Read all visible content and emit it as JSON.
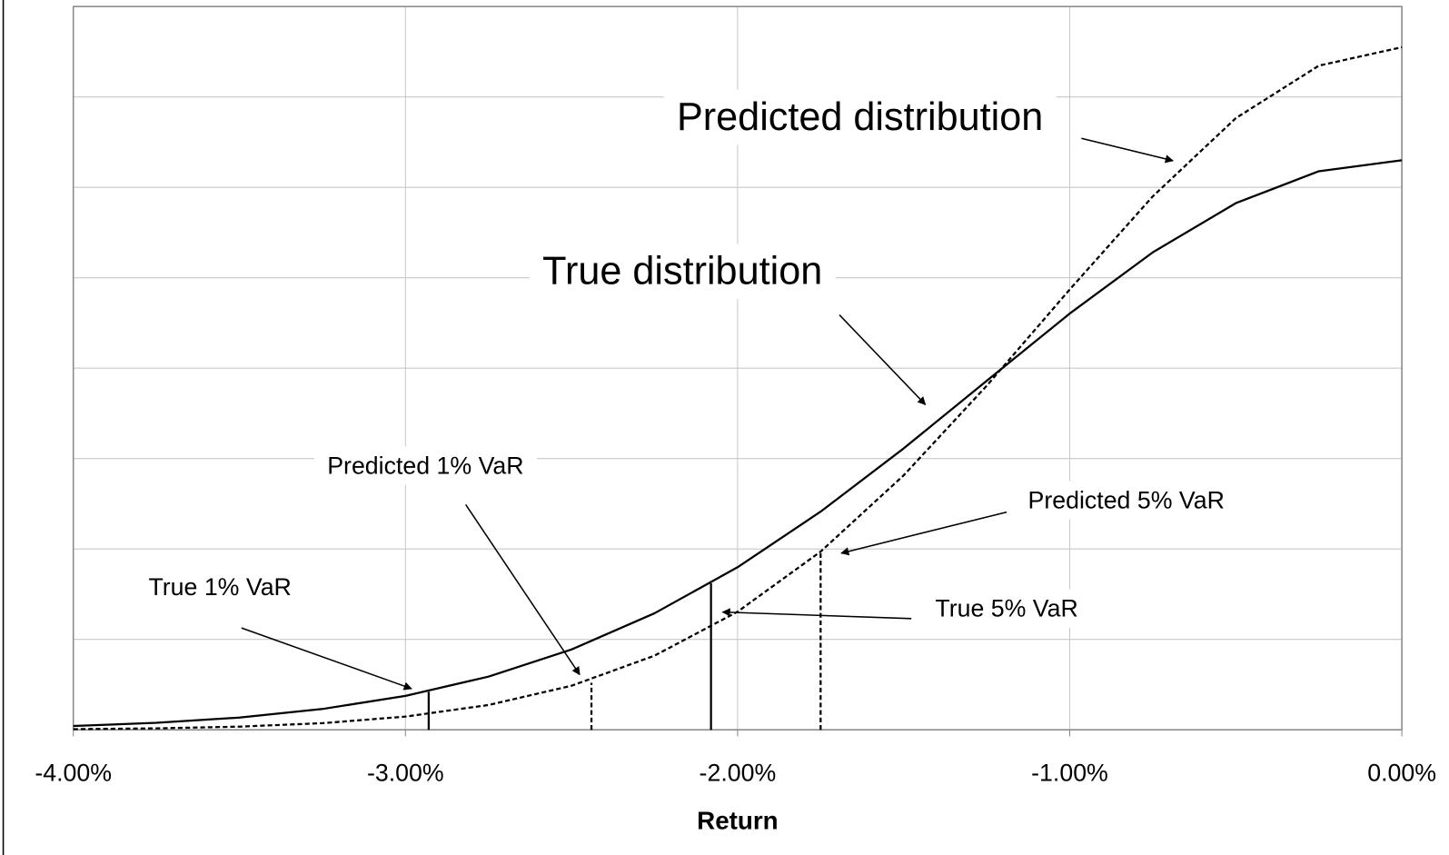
{
  "chart_data": {
    "type": "line",
    "xlabel": "Return",
    "x": [
      -4,
      -3.75,
      -3.5,
      -3.25,
      -3,
      -2.75,
      -2.5,
      -2.25,
      -2,
      -1.75,
      -1.5,
      -1.25,
      -1,
      -0.75,
      -0.5,
      -0.25,
      0
    ],
    "series": [
      {
        "name": "True distribution",
        "color": "#000000",
        "dashed": false,
        "values": [
          0.042,
          0.077,
          0.135,
          0.23,
          0.375,
          0.588,
          0.888,
          1.289,
          1.798,
          2.413,
          3.112,
          3.86,
          4.604,
          5.281,
          5.825,
          6.178,
          6.3
        ]
      },
      {
        "name": "Predicted distribution",
        "color": "#000000",
        "dashed": true,
        "values": [
          0.007,
          0.016,
          0.035,
          0.073,
          0.146,
          0.274,
          0.487,
          0.82,
          1.306,
          1.971,
          2.814,
          3.805,
          4.87,
          5.9,
          6.765,
          7.346,
          7.55
        ]
      }
    ],
    "var_lines": [
      {
        "label": "True 1% VaR",
        "x": -2.93,
        "value": 0.42,
        "dashed": false
      },
      {
        "label": "Predicted 1% VaR",
        "x": -2.44,
        "value": 0.52,
        "dashed": true
      },
      {
        "label": "True 5% VaR",
        "x": -2.08,
        "value": 1.62,
        "dashed": false
      },
      {
        "label": "Predicted 5% VaR",
        "x": -1.75,
        "value": 1.97,
        "dashed": true
      }
    ],
    "xlim": [
      -4,
      0
    ],
    "xticks": [
      {
        "value": -4,
        "label": "-4.00%"
      },
      {
        "value": -3,
        "label": "-3.00%"
      },
      {
        "value": -2,
        "label": "-2.00%"
      },
      {
        "value": -1,
        "label": "-1.00%"
      },
      {
        "value": 0,
        "label": "0.00%"
      }
    ],
    "ylim": [
      0,
      8
    ],
    "yticks": [
      0,
      1,
      2,
      3,
      4,
      5,
      6,
      7,
      8
    ],
    "grid": true
  }
}
